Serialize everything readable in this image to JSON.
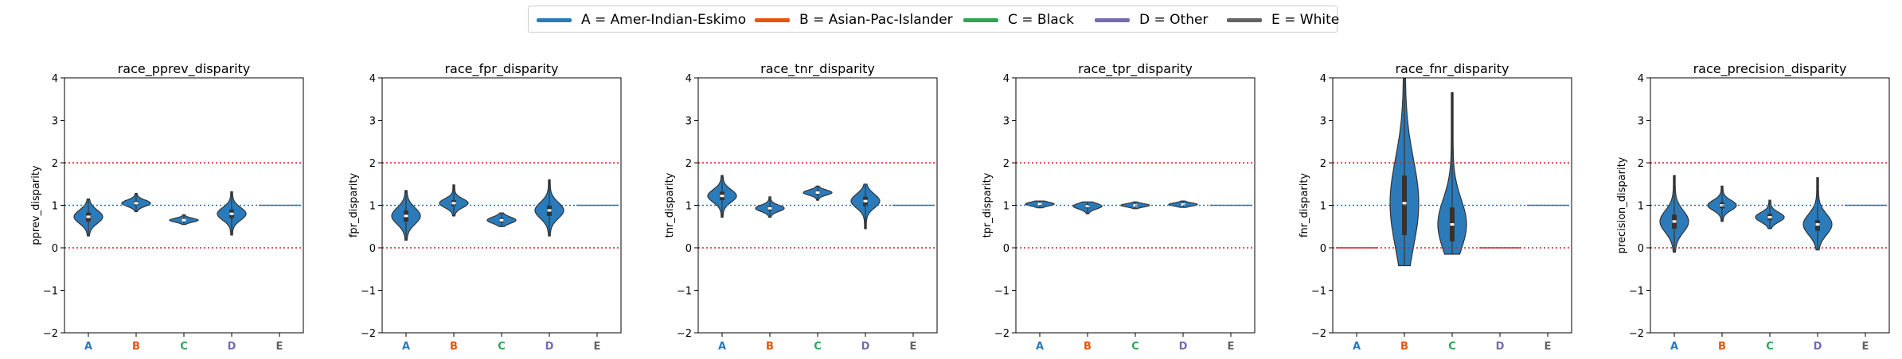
{
  "legend": {
    "items": [
      {
        "label": "A = Amer-Indian-Eskimo",
        "color": "#2b7bba"
      },
      {
        "label": "B = Asian-Pac-Islander",
        "color": "#e6550d"
      },
      {
        "label": "C = Black",
        "color": "#31a354"
      },
      {
        "label": "D = Other",
        "color": "#756bb1"
      },
      {
        "label": "E = White",
        "color": "#636363"
      }
    ]
  },
  "chart_data": [
    {
      "type": "violin",
      "title": "race_pprev_disparity",
      "ylabel": "pprev_disparity",
      "categories": [
        "A",
        "B",
        "C",
        "D",
        "E"
      ],
      "yticks": [
        "4",
        "3",
        "2",
        "1",
        "0",
        "−1",
        "−2"
      ],
      "ylim": [
        -2,
        4
      ],
      "reference_lines": {
        "red": [
          2,
          0
        ],
        "blue": 1
      },
      "distributions": [
        {
          "category": "A",
          "median": 0.73,
          "q1": 0.62,
          "q3": 0.83,
          "min": 0.28,
          "max": 1.15
        },
        {
          "category": "B",
          "median": 1.05,
          "q1": 1.0,
          "q3": 1.1,
          "min": 0.85,
          "max": 1.28
        },
        {
          "category": "C",
          "median": 0.65,
          "q1": 0.62,
          "q3": 0.68,
          "min": 0.55,
          "max": 0.78
        },
        {
          "category": "D",
          "median": 0.8,
          "q1": 0.7,
          "q3": 0.9,
          "min": 0.3,
          "max": 1.32
        },
        {
          "category": "E",
          "median": 1.0,
          "q1": 1.0,
          "q3": 1.0,
          "min": 1.0,
          "max": 1.0
        }
      ]
    },
    {
      "type": "violin",
      "title": "race_fpr_disparity",
      "ylabel": "fpr_disparity",
      "categories": [
        "A",
        "B",
        "C",
        "D",
        "E"
      ],
      "yticks": [
        "4",
        "3",
        "2",
        "1",
        "0",
        "−1",
        "−2"
      ],
      "ylim": [
        -2,
        4
      ],
      "reference_lines": {
        "red": [
          2,
          0
        ],
        "blue": 1
      },
      "distributions": [
        {
          "category": "A",
          "median": 0.75,
          "q1": 0.62,
          "q3": 0.88,
          "min": 0.18,
          "max": 1.35
        },
        {
          "category": "B",
          "median": 1.05,
          "q1": 0.98,
          "q3": 1.12,
          "min": 0.75,
          "max": 1.48
        },
        {
          "category": "C",
          "median": 0.65,
          "q1": 0.6,
          "q3": 0.7,
          "min": 0.5,
          "max": 0.82
        },
        {
          "category": "D",
          "median": 0.88,
          "q1": 0.75,
          "q3": 1.0,
          "min": 0.28,
          "max": 1.6
        },
        {
          "category": "E",
          "median": 1.0,
          "q1": 1.0,
          "q3": 1.0,
          "min": 1.0,
          "max": 1.0
        }
      ]
    },
    {
      "type": "violin",
      "title": "race_tnr_disparity",
      "ylabel": "tnr_disparity",
      "categories": [
        "A",
        "B",
        "C",
        "D",
        "E"
      ],
      "yticks": [
        "4",
        "3",
        "2",
        "1",
        "0",
        "−1",
        "−2"
      ],
      "ylim": [
        -2,
        4
      ],
      "reference_lines": {
        "red": [
          2,
          0
        ],
        "blue": 1
      },
      "distributions": [
        {
          "category": "A",
          "median": 1.22,
          "q1": 1.12,
          "q3": 1.32,
          "min": 0.72,
          "max": 1.7
        },
        {
          "category": "B",
          "median": 0.93,
          "q1": 0.88,
          "q3": 0.98,
          "min": 0.72,
          "max": 1.2
        },
        {
          "category": "C",
          "median": 1.3,
          "q1": 1.26,
          "q3": 1.34,
          "min": 1.12,
          "max": 1.45
        },
        {
          "category": "D",
          "median": 1.1,
          "q1": 0.98,
          "q3": 1.2,
          "min": 0.45,
          "max": 1.5
        },
        {
          "category": "E",
          "median": 1.0,
          "q1": 1.0,
          "q3": 1.0,
          "min": 1.0,
          "max": 1.0
        }
      ]
    },
    {
      "type": "violin",
      "title": "race_tpr_disparity",
      "ylabel": "tpr_disparity",
      "categories": [
        "A",
        "B",
        "C",
        "D",
        "E"
      ],
      "yticks": [
        "4",
        "3",
        "2",
        "1",
        "0",
        "−1",
        "−2"
      ],
      "ylim": [
        -2,
        4
      ],
      "reference_lines": {
        "red": [
          2,
          0
        ],
        "blue": 1
      },
      "distributions": [
        {
          "category": "A",
          "median": 1.03,
          "q1": 1.0,
          "q3": 1.06,
          "min": 0.94,
          "max": 1.1
        },
        {
          "category": "B",
          "median": 0.98,
          "q1": 0.93,
          "q3": 1.02,
          "min": 0.8,
          "max": 1.08
        },
        {
          "category": "C",
          "median": 1.0,
          "q1": 0.98,
          "q3": 1.03,
          "min": 0.92,
          "max": 1.08
        },
        {
          "category": "D",
          "median": 1.02,
          "q1": 1.0,
          "q3": 1.05,
          "min": 0.95,
          "max": 1.1
        },
        {
          "category": "E",
          "median": 1.0,
          "q1": 1.0,
          "q3": 1.0,
          "min": 1.0,
          "max": 1.0
        }
      ]
    },
    {
      "type": "violin",
      "title": "race_fnr_disparity",
      "ylabel": "fnr_disparity",
      "categories": [
        "A",
        "B",
        "C",
        "D",
        "E"
      ],
      "yticks": [
        "4",
        "3",
        "2",
        "1",
        "0",
        "−1",
        "−2"
      ],
      "ylim": [
        -2,
        4
      ],
      "reference_lines": {
        "red": [
          2,
          0
        ],
        "blue": 1
      },
      "distributions": [
        {
          "category": "A",
          "median": 0.0,
          "q1": 0.0,
          "q3": 0.0,
          "min": 0.0,
          "max": 0.0
        },
        {
          "category": "B",
          "median": 1.05,
          "q1": 0.3,
          "q3": 1.7,
          "min": -0.42,
          "max": 4.1
        },
        {
          "category": "C",
          "median": 0.55,
          "q1": 0.15,
          "q3": 0.95,
          "min": -0.15,
          "max": 3.65
        },
        {
          "category": "D",
          "median": 0.0,
          "q1": 0.0,
          "q3": 0.0,
          "min": 0.0,
          "max": 0.0
        },
        {
          "category": "E",
          "median": 1.0,
          "q1": 1.0,
          "q3": 1.0,
          "min": 1.0,
          "max": 1.0
        }
      ]
    },
    {
      "type": "violin",
      "title": "race_precision_disparity",
      "ylabel": "precision_disparity",
      "categories": [
        "A",
        "B",
        "C",
        "D",
        "E"
      ],
      "yticks": [
        "4",
        "3",
        "2",
        "1",
        "0",
        "−1",
        "−2"
      ],
      "ylim": [
        -2,
        4
      ],
      "reference_lines": {
        "red": [
          2,
          0
        ],
        "blue": 1
      },
      "distributions": [
        {
          "category": "A",
          "median": 0.62,
          "q1": 0.45,
          "q3": 0.78,
          "min": -0.1,
          "max": 1.7
        },
        {
          "category": "B",
          "median": 1.0,
          "q1": 0.93,
          "q3": 1.07,
          "min": 0.62,
          "max": 1.45
        },
        {
          "category": "C",
          "median": 0.72,
          "q1": 0.65,
          "q3": 0.8,
          "min": 0.45,
          "max": 1.12
        },
        {
          "category": "D",
          "median": 0.55,
          "q1": 0.4,
          "q3": 0.65,
          "min": -0.05,
          "max": 1.65
        },
        {
          "category": "E",
          "median": 1.0,
          "q1": 1.0,
          "q3": 1.0,
          "min": 1.0,
          "max": 1.0
        }
      ]
    }
  ]
}
